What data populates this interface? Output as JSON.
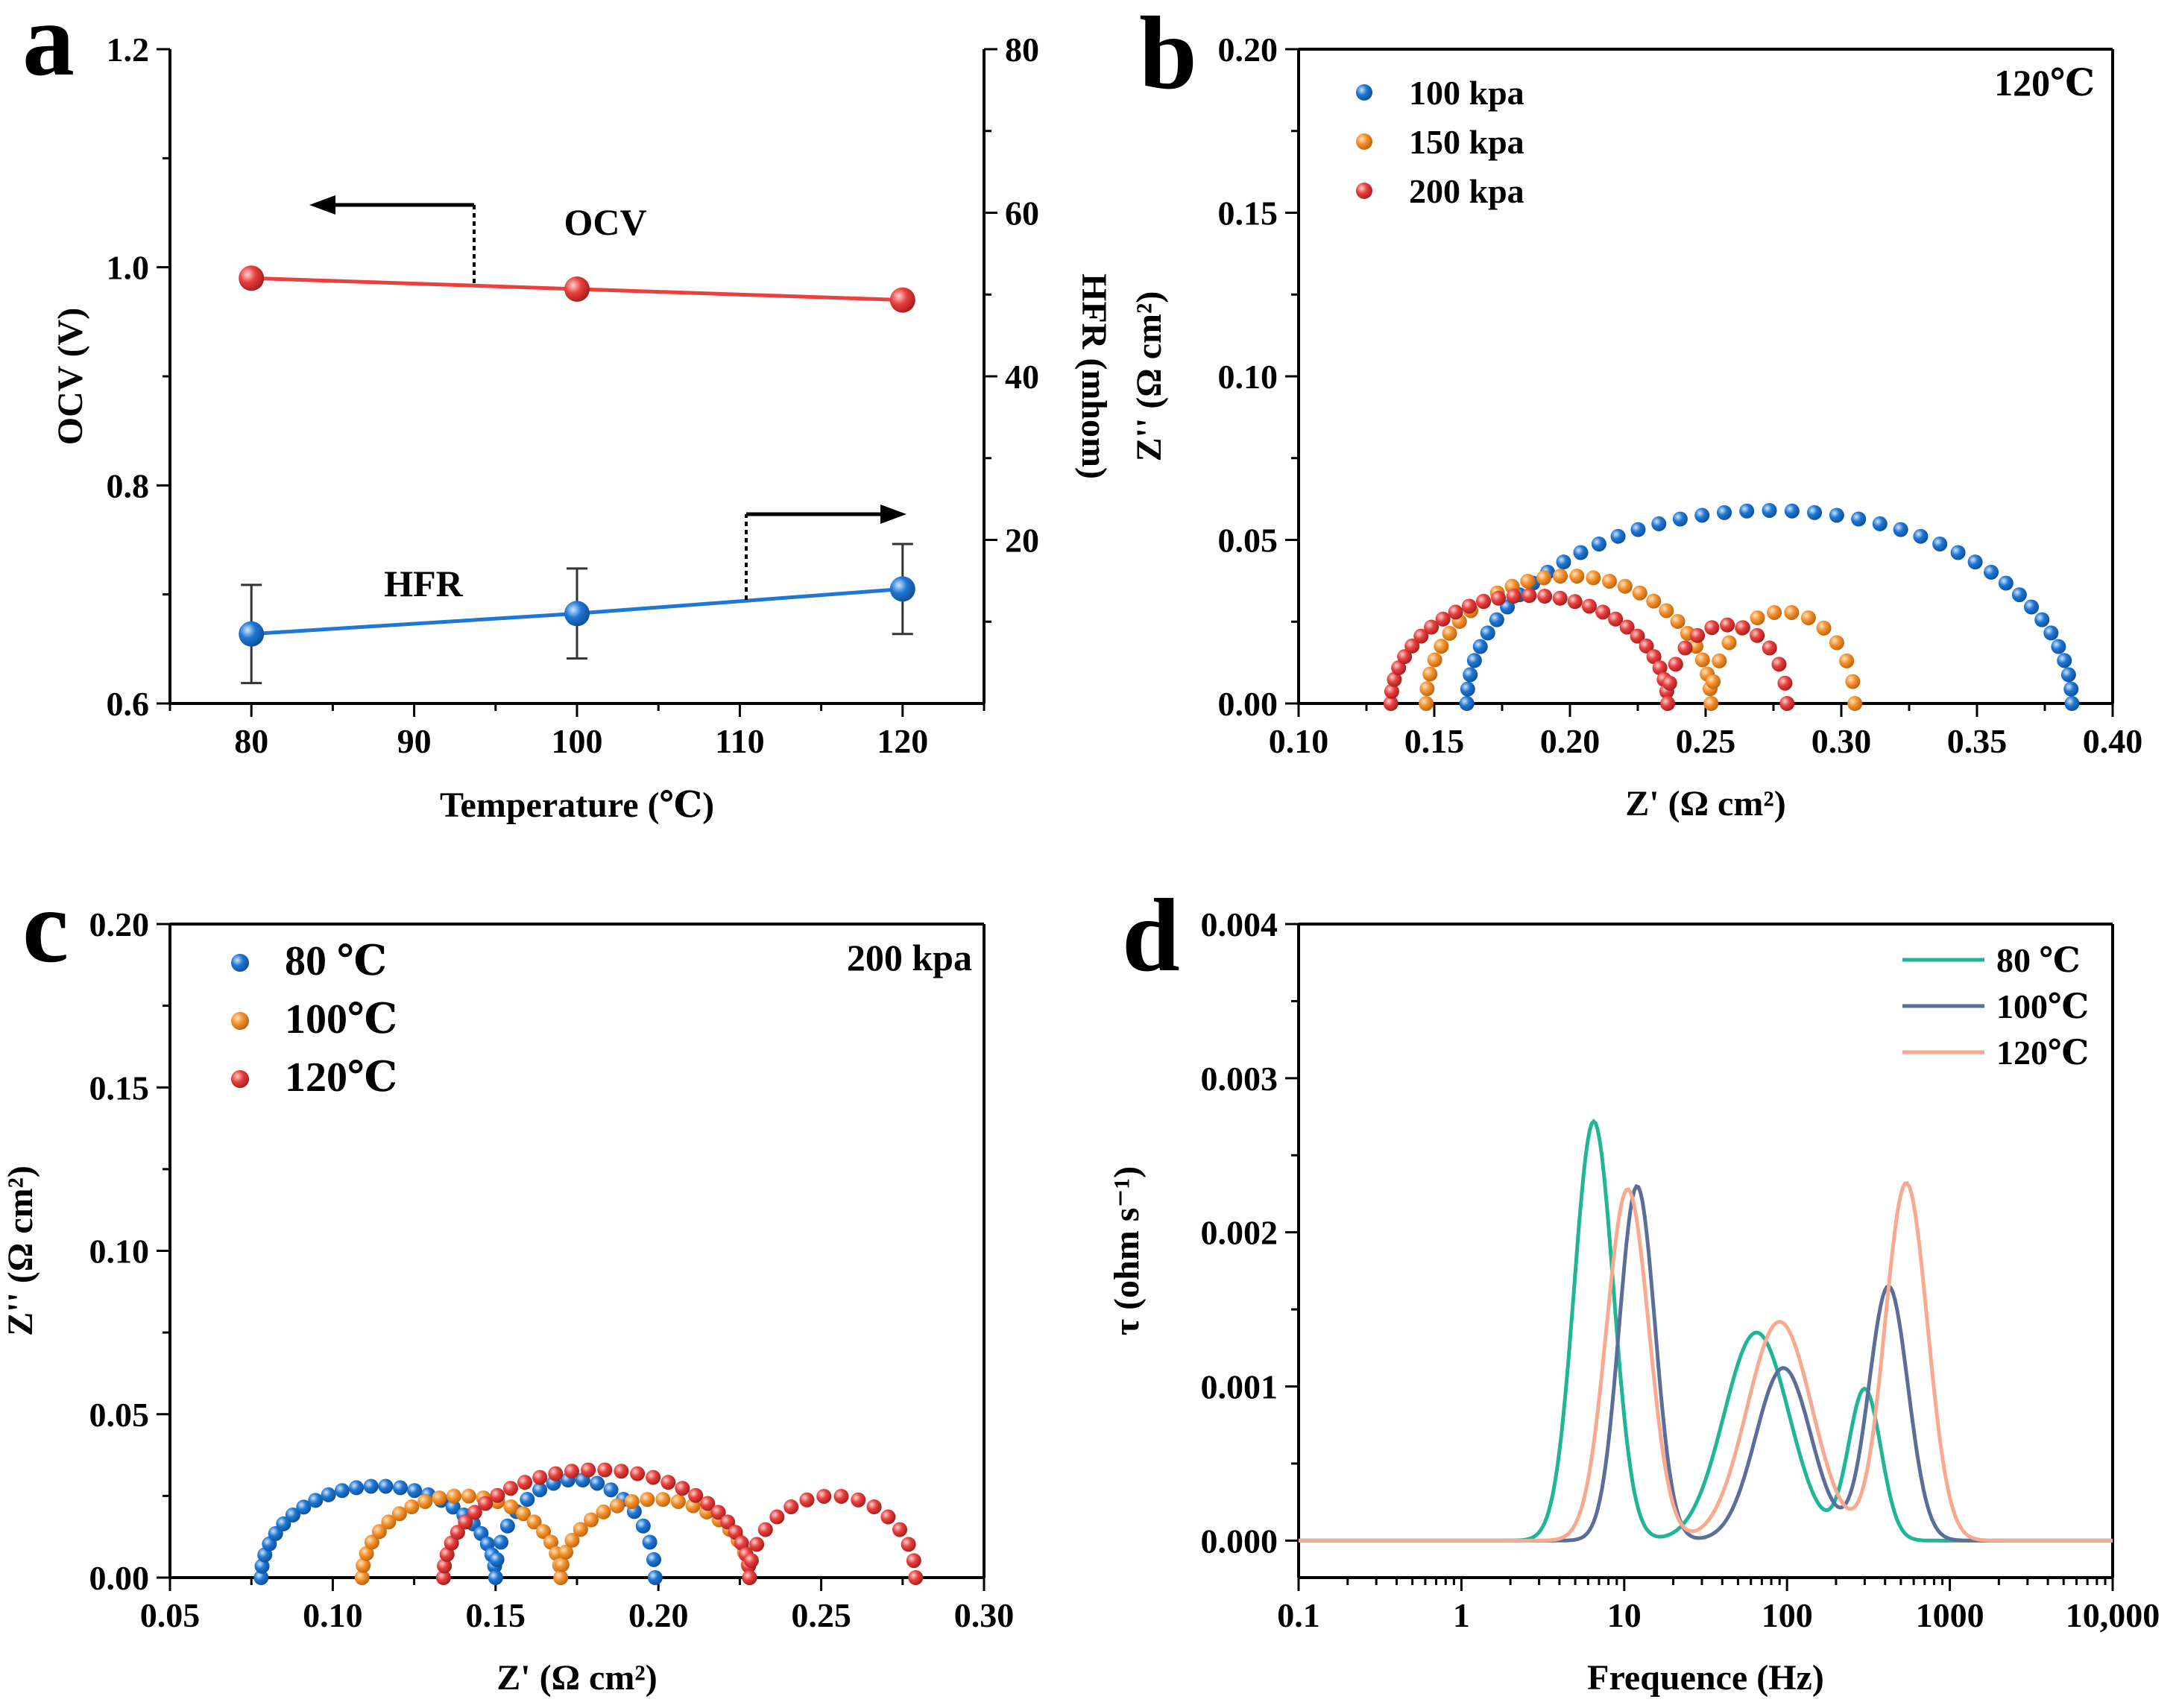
{
  "colors": {
    "blue": "#1f77d4",
    "orange": "#f5922e",
    "red": "#e8413f",
    "ocv_line": "#e8413f",
    "hfr_line": "#1f77d4",
    "teal": "#1fb596",
    "slate": "#5b6e9a",
    "salmon": "#f7aa8f"
  },
  "chart_data": [
    {
      "panel": "a",
      "type": "line",
      "xlabel": "Temperature (℃)",
      "ylabel": "OCV (V)",
      "y2label": "HFR (mhom)",
      "xlim": [
        75,
        125
      ],
      "ylim": [
        0.6,
        1.2
      ],
      "y2lim": [
        0,
        80
      ],
      "xticks": [
        80,
        90,
        100,
        110,
        120
      ],
      "xtick_labels": [
        "80",
        "90",
        "100",
        "110",
        "120"
      ],
      "yticks": [
        0.6,
        0.8,
        1.0,
        1.2
      ],
      "ytick_labels": [
        "0.6",
        "0.8",
        "1.0",
        "1.2"
      ],
      "y2ticks": [
        20,
        40,
        60,
        80
      ],
      "y2tick_labels": [
        "20",
        "40",
        "60",
        "80"
      ],
      "annotations": {
        "ocv": "OCV",
        "hfr": "HFR"
      },
      "series": [
        {
          "name": "OCV",
          "axis": "left",
          "color_key": "red",
          "x": [
            80,
            100,
            120
          ],
          "y": [
            0.99,
            0.98,
            0.97
          ]
        },
        {
          "name": "HFR",
          "axis": "right",
          "color_key": "blue",
          "x": [
            80,
            100,
            120
          ],
          "y": [
            8.5,
            11.0,
            14.0
          ],
          "err": [
            6.0,
            5.5,
            5.5
          ]
        }
      ]
    },
    {
      "panel": "b",
      "type": "scatter",
      "xlabel": "Z' (Ω cm²)",
      "ylabel": "Z'' (Ω cm²)",
      "xlim": [
        0.1,
        0.4
      ],
      "ylim": [
        0.0,
        0.2
      ],
      "xticks": [
        0.1,
        0.15,
        0.2,
        0.25,
        0.3,
        0.35,
        0.4
      ],
      "xtick_labels": [
        "0.10",
        "0.15",
        "0.20",
        "0.25",
        "0.30",
        "0.35",
        "0.40"
      ],
      "yticks": [
        0.0,
        0.05,
        0.1,
        0.15,
        0.2
      ],
      "ytick_labels": [
        "0.00",
        "0.05",
        "0.10",
        "0.15",
        "0.20"
      ],
      "condition_label": "120℃",
      "series": [
        {
          "name": "100 kpa",
          "color_key": "blue",
          "arcs": [
            [
              0.162,
              0.385,
              0.059
            ]
          ],
          "n": 42
        },
        {
          "name": "150 kpa",
          "color_key": "orange",
          "arcs": [
            [
              0.147,
              0.252,
              0.039
            ],
            [
              0.252,
              0.305,
              0.028
            ]
          ],
          "n": 40
        },
        {
          "name": "200 kpa",
          "color_key": "red",
          "arcs": [
            [
              0.134,
              0.236,
              0.033
            ],
            [
              0.236,
              0.28,
              0.024
            ]
          ],
          "n": 40
        }
      ]
    },
    {
      "panel": "c",
      "type": "scatter",
      "xlabel": "Z' (Ω cm²)",
      "ylabel": "Z'' (Ω cm²)",
      "xlim": [
        0.05,
        0.3
      ],
      "ylim": [
        0.0,
        0.2
      ],
      "xticks": [
        0.05,
        0.1,
        0.15,
        0.2,
        0.25,
        0.3
      ],
      "xtick_labels": [
        "0.05",
        "0.10",
        "0.15",
        "0.20",
        "0.25",
        "0.30"
      ],
      "yticks": [
        0.0,
        0.05,
        0.1,
        0.15,
        0.2
      ],
      "ytick_labels": [
        "0.00",
        "0.05",
        "0.10",
        "0.15",
        "0.20"
      ],
      "condition_label": "200 kpa",
      "series": [
        {
          "name": "80 ℃",
          "color_key": "blue",
          "arcs": [
            [
              0.078,
              0.15,
              0.028
            ],
            [
              0.15,
              0.199,
              0.03
            ]
          ],
          "n": 42
        },
        {
          "name": "100℃",
          "color_key": "orange",
          "arcs": [
            [
              0.109,
              0.17,
              0.025
            ],
            [
              0.17,
              0.228,
              0.024
            ]
          ],
          "n": 40
        },
        {
          "name": "120℃",
          "color_key": "red",
          "arcs": [
            [
              0.134,
              0.228,
              0.033
            ],
            [
              0.228,
              0.279,
              0.025
            ]
          ],
          "n": 44
        }
      ]
    },
    {
      "panel": "d",
      "type": "line",
      "xscale": "log",
      "xlabel": "Frequence (Hz)",
      "ylabel": "τ (ohm s⁻¹)",
      "xlim": [
        0.1,
        10000
      ],
      "ylim": [
        -0.00024,
        0.004
      ],
      "xticks": [
        0.1,
        1,
        10,
        100,
        1000,
        10000
      ],
      "xtick_labels": [
        "0.1",
        "1",
        "10",
        "100",
        "1000",
        "10,000"
      ],
      "yticks": [
        0.0,
        0.001,
        0.002,
        0.003,
        0.004
      ],
      "ytick_labels": [
        "0.000",
        "0.001",
        "0.002",
        "0.003",
        "0.004"
      ],
      "series": [
        {
          "name": "80 ℃",
          "color_key": "teal",
          "peaks": [
            [
              6.5,
              0.00272,
              0.12
            ],
            [
              65,
              0.00135,
              0.2
            ],
            [
              300,
              0.00098,
              0.1
            ]
          ]
        },
        {
          "name": "100℃",
          "color_key": "slate",
          "peaks": [
            [
              12,
              0.0023,
              0.11
            ],
            [
              95,
              0.00112,
              0.17
            ],
            [
              420,
              0.00165,
              0.12
            ]
          ]
        },
        {
          "name": "120℃",
          "color_key": "salmon",
          "peaks": [
            [
              10.5,
              0.00228,
              0.13
            ],
            [
              90,
              0.00142,
              0.2
            ],
            [
              540,
              0.00232,
              0.13
            ]
          ]
        }
      ]
    }
  ]
}
